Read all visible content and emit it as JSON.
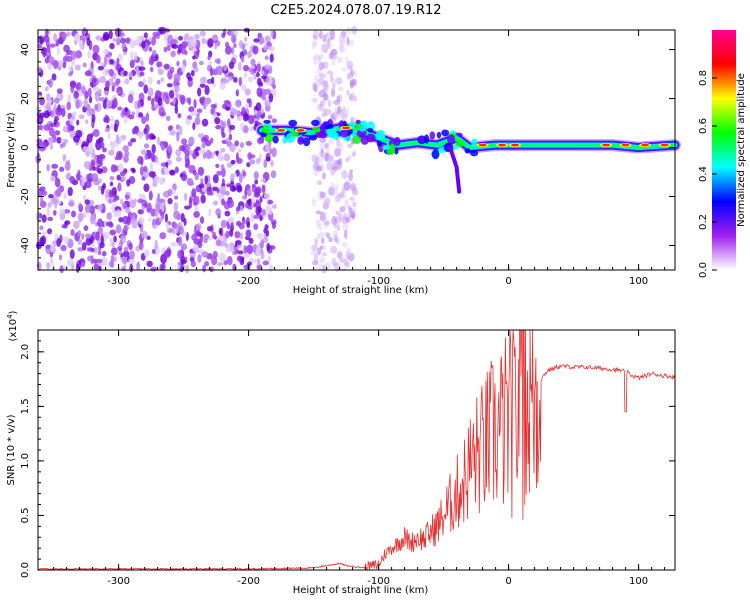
{
  "title": "C2E5.2024.078.07.19.R12",
  "chart_data": [
    {
      "type": "heatmap",
      "xlabel": "Height of straight line (km)",
      "ylabel": "Frequency (Hz)",
      "xlim": [
        -362,
        128
      ],
      "ylim": [
        -50,
        48
      ],
      "x_ticks": [
        -300,
        -200,
        -100,
        0,
        100
      ],
      "x_tick_labels": [
        "-300",
        "-200",
        "-100",
        "0",
        "100"
      ],
      "y_ticks": [
        -40,
        -20,
        0,
        20,
        40
      ],
      "y_tick_labels": [
        "-40",
        "-20",
        "0",
        "20",
        "40"
      ],
      "colorbar": {
        "label": "Normalized spectral amplitude",
        "range": [
          0.0,
          1.0
        ],
        "ticks": [
          0.0,
          0.2,
          0.4,
          0.6,
          0.8
        ],
        "tick_labels": [
          "0.0",
          "0.2",
          "0.4",
          "0.6",
          "0.8"
        ],
        "colors": [
          "#ffffff",
          "#a020f0",
          "#0000ff",
          "#00ffff",
          "#00ff00",
          "#ffff00",
          "#ff0000",
          "#ff0090"
        ]
      },
      "regions": [
        {
          "name": "broadband noise",
          "x": [
            -362,
            -180
          ],
          "freq": [
            -50,
            48
          ],
          "amplitude": 0.25
        },
        {
          "name": "noise band",
          "x": [
            -150,
            -118
          ],
          "freq": [
            -50,
            48
          ],
          "amplitude": 0.15
        },
        {
          "name": "trace",
          "x": [
            -190,
            128
          ],
          "freq_center": [
            7,
            0
          ],
          "amplitude": 0.75
        }
      ],
      "trace_center": [
        {
          "x": -190,
          "f": 7
        },
        {
          "x": -170,
          "f": 7
        },
        {
          "x": -150,
          "f": 6
        },
        {
          "x": -130,
          "f": 8
        },
        {
          "x": -115,
          "f": 7
        },
        {
          "x": -100,
          "f": 4
        },
        {
          "x": -85,
          "f": 1
        },
        {
          "x": -70,
          "f": 2
        },
        {
          "x": -55,
          "f": 1
        },
        {
          "x": -40,
          "f": 4
        },
        {
          "x": -30,
          "f": 0
        },
        {
          "x": -10,
          "f": 1
        },
        {
          "x": 10,
          "f": 1
        },
        {
          "x": 40,
          "f": 1
        },
        {
          "x": 80,
          "f": 1
        },
        {
          "x": 100,
          "f": 0
        },
        {
          "x": 128,
          "f": 1
        }
      ],
      "grid": false
    },
    {
      "type": "line",
      "xlabel": "Height of straight line (km)",
      "ylabel": "SNR (10 * v/v)",
      "y_scale_label": "(x10",
      "y_scale_exp": "4",
      "y_scale_close": ")",
      "xlim": [
        -362,
        128
      ],
      "ylim": [
        0,
        2.2
      ],
      "x_ticks": [
        -300,
        -200,
        -100,
        0,
        100
      ],
      "x_tick_labels": [
        "-300",
        "-200",
        "-100",
        "0",
        "100"
      ],
      "y_ticks": [
        0.0,
        0.5,
        1.0,
        1.5,
        2.0
      ],
      "y_tick_labels": [
        "0.0",
        "0.5",
        "1.0",
        "1.5",
        "2.0"
      ],
      "color": "#e83030",
      "series": [
        {
          "x": [
            -362,
            -300,
            -250,
            -200,
            -150,
            -130,
            -125,
            -110,
            -100,
            -95,
            -90,
            -85,
            -80,
            -75,
            -70,
            -65,
            -60,
            -55,
            -50,
            -45,
            -40,
            -35,
            -30,
            -25,
            -20,
            -15,
            -10,
            -5,
            0,
            5,
            10,
            15,
            20,
            25,
            30,
            40,
            50,
            60,
            70,
            80,
            90,
            95,
            100,
            110,
            120,
            128
          ],
          "y": [
            0.01,
            0.01,
            0.01,
            0.01,
            0.02,
            0.06,
            0.04,
            0.02,
            0.05,
            0.15,
            0.2,
            0.25,
            0.3,
            0.25,
            0.3,
            0.28,
            0.35,
            0.4,
            0.5,
            0.6,
            0.7,
            0.8,
            0.95,
            1.05,
            1.1,
            1.2,
            1.25,
            1.3,
            1.35,
            1.4,
            1.45,
            1.5,
            1.6,
            1.75,
            1.83,
            1.87,
            1.86,
            1.86,
            1.85,
            1.84,
            1.82,
            1.78,
            1.76,
            1.8,
            1.78,
            1.77
          ]
        }
      ],
      "grid": false
    }
  ]
}
